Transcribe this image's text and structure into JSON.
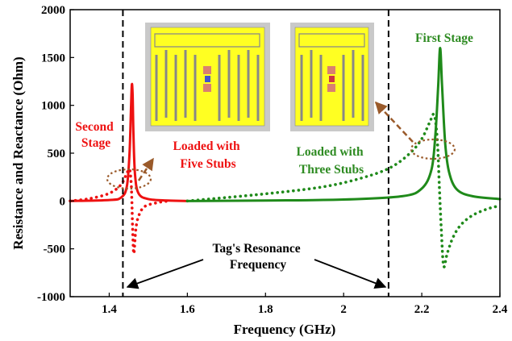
{
  "chart_data": {
    "type": "line",
    "title": "",
    "xlabel": "Frequency (GHz)",
    "ylabel": "Resistance and Reactance (Ohm)",
    "xlim": [
      1.3,
      2.4
    ],
    "ylim": [
      -1000,
      2000
    ],
    "x_ticks": [
      1.4,
      1.6,
      1.8,
      2.0,
      2.2,
      2.4
    ],
    "x_tick_labels": [
      "1.4",
      "1.6",
      "1.8",
      "2",
      "2.2",
      "2.4"
    ],
    "y_ticks": [
      -1000,
      -500,
      0,
      500,
      1000,
      1500,
      2000
    ],
    "y_tick_labels": [
      "-1000",
      "-500",
      "0",
      "500",
      "1000",
      "1500",
      "2000"
    ],
    "grid": false,
    "legend": "none",
    "colors": {
      "red": "#ee1111",
      "green": "#1f8a1a",
      "annotation_arrow": "#9a5a2a"
    },
    "series": [
      {
        "color": "red",
        "style": "solid",
        "x": [
          1.3,
          1.4,
          1.43,
          1.445,
          1.452,
          1.456,
          1.458,
          1.46,
          1.462,
          1.466,
          1.475,
          1.5,
          1.55,
          1.6
        ],
        "y": [
          0,
          10,
          35,
          150,
          500,
          1000,
          1220,
          1100,
          700,
          280,
          80,
          20,
          5,
          0
        ]
      },
      {
        "color": "red",
        "style": "dotted",
        "x": [
          1.3,
          1.35,
          1.4,
          1.43,
          1.445,
          1.452,
          1.456,
          1.458,
          1.46,
          1.463,
          1.468,
          1.475,
          1.49,
          1.52,
          1.55
        ],
        "y": [
          0,
          25,
          80,
          170,
          290,
          330,
          200,
          0,
          -300,
          -550,
          -300,
          -160,
          -60,
          -20,
          0
        ]
      },
      {
        "color": "green",
        "style": "solid",
        "x": [
          1.6,
          1.8,
          2.0,
          2.15,
          2.2,
          2.225,
          2.235,
          2.242,
          2.247,
          2.252,
          2.26,
          2.27,
          2.29,
          2.33,
          2.4
        ],
        "y": [
          0,
          5,
          15,
          50,
          130,
          330,
          700,
          1200,
          1600,
          1200,
          600,
          300,
          120,
          50,
          20
        ]
      },
      {
        "color": "green",
        "style": "dotted",
        "x": [
          1.6,
          1.8,
          1.95,
          2.05,
          2.12,
          2.17,
          2.2,
          2.22,
          2.232,
          2.24,
          2.245,
          2.25,
          2.256,
          2.265,
          2.28,
          2.3,
          2.33,
          2.37,
          2.4
        ],
        "y": [
          0,
          75,
          150,
          245,
          350,
          500,
          650,
          820,
          900,
          620,
          150,
          -300,
          -680,
          -550,
          -380,
          -250,
          -150,
          -80,
          -50
        ]
      }
    ],
    "vlines": [
      1.435,
      2.115
    ],
    "annotations": {
      "second_stage_l1": "Second",
      "second_stage_l2": "Stage",
      "first_stage": "First Stage",
      "five_stubs_l1": "Loaded with",
      "five_stubs_l2": "Five Stubs",
      "three_stubs_l1": "Loaded with",
      "three_stubs_l2": "Three Stubs",
      "resonance_l1": "Tag's Resonance",
      "resonance_l2": "Frequency"
    }
  }
}
